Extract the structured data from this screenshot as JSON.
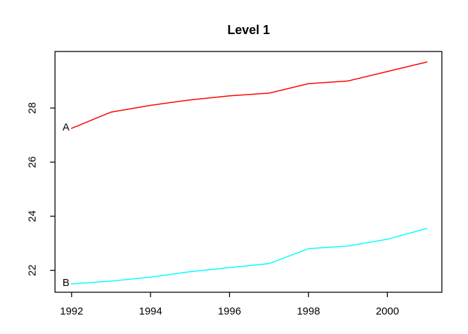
{
  "figure": {
    "background": "#ffffff"
  },
  "chart_data": {
    "type": "line",
    "title": "Level 1",
    "xlabel": "",
    "ylabel": "",
    "x": [
      1992,
      1993,
      1994,
      1995,
      1996,
      1997,
      1998,
      1999,
      2000,
      2001
    ],
    "series": [
      {
        "name": "A",
        "label": "A",
        "color": "#ff0000",
        "values": [
          27.25,
          27.85,
          28.1,
          28.3,
          28.45,
          28.55,
          28.9,
          29.0,
          29.35,
          29.7
        ]
      },
      {
        "name": "B",
        "label": "B",
        "color": "#00ffff",
        "values": [
          21.5,
          21.6,
          21.75,
          21.95,
          22.1,
          22.25,
          22.8,
          22.9,
          23.15,
          23.55
        ]
      }
    ],
    "xticks": [
      1992,
      1994,
      1996,
      1998,
      2000
    ],
    "yticks": [
      22,
      24,
      26,
      28
    ],
    "xlim": [
      1991.58,
      2001.38
    ],
    "ylim": [
      21.19,
      30.09
    ],
    "grid": false,
    "legend_position": "none",
    "series_label_placement": "left of first point",
    "axis_color": "#000000",
    "text_color": "#000000",
    "plot_background": "#ffffff"
  }
}
